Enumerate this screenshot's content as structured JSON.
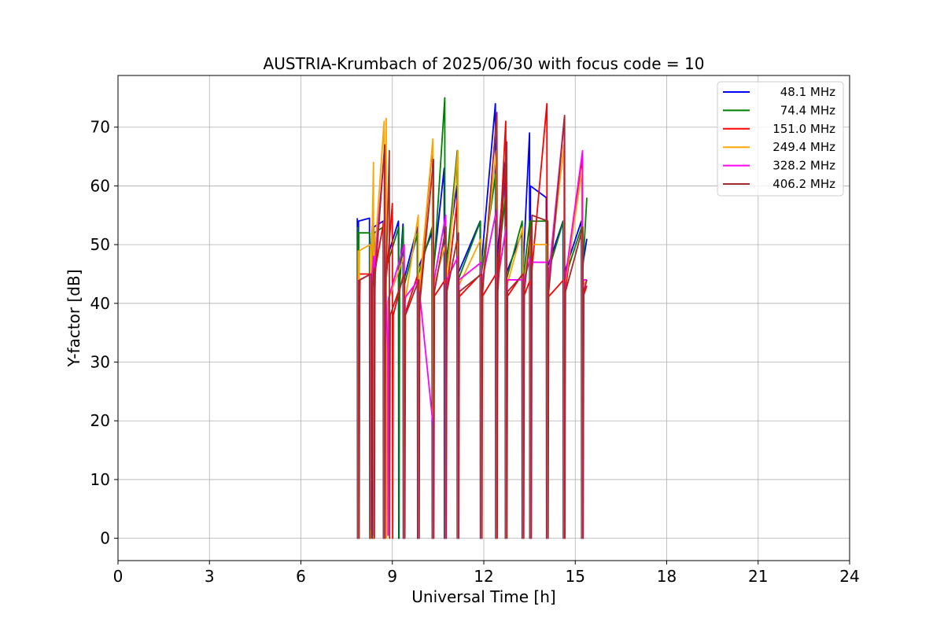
{
  "chart_data": {
    "type": "line",
    "title": "AUSTRIA-Krumbach of 2025/06/30 with focus code = 10",
    "xlabel": "Universal Time [h]",
    "ylabel": "Y-factor [dB]",
    "xlim": [
      0,
      24
    ],
    "ylim": [
      -3.8,
      78.8
    ],
    "xticks": [
      0,
      3,
      6,
      9,
      12,
      15,
      18,
      21,
      24
    ],
    "yticks": [
      0,
      10,
      20,
      30,
      40,
      50,
      60,
      70
    ],
    "grid": true,
    "legend_position": "top-right",
    "series": [
      {
        "name": "48.1 MHz",
        "color": "#0000ff",
        "x": [
          7.85,
          7.86,
          7.87,
          7.88,
          7.89,
          8.25,
          8.26,
          8.27,
          8.28,
          8.35,
          8.36,
          8.37,
          8.38,
          8.39,
          8.7,
          8.71,
          8.72,
          8.73,
          9.2,
          9.21,
          9.22,
          9.23,
          9.35,
          9.36,
          9.37,
          9.38,
          9.82,
          9.83,
          9.84,
          9.85,
          10.3,
          10.31,
          10.32,
          10.33,
          10.7,
          10.71,
          10.72,
          10.73,
          11.12,
          11.13,
          11.14,
          11.15,
          11.88,
          11.89,
          11.9,
          11.91,
          12.38,
          12.39,
          12.4,
          12.41,
          12.7,
          12.71,
          12.72,
          12.73,
          13.25,
          13.26,
          13.27,
          13.28,
          13.5,
          13.51,
          13.52,
          13.53,
          14.05,
          14.06,
          14.07,
          14.08,
          14.6,
          14.61,
          14.62,
          14.63,
          15.2,
          15.21,
          15.22,
          15.23,
          15.38
        ],
        "y": [
          54.5,
          0,
          25,
          44,
          54,
          54.5,
          0,
          27,
          45,
          54,
          0,
          26,
          45,
          53,
          54,
          0,
          30,
          46,
          54,
          0,
          26,
          44,
          53.5,
          0,
          25,
          44,
          53,
          0,
          30,
          46,
          52,
          0,
          27,
          45,
          63,
          0,
          30,
          46,
          60,
          0,
          28,
          45,
          54,
          0,
          30,
          46,
          74,
          0,
          30,
          46,
          64,
          0,
          27,
          45,
          52,
          0,
          26,
          45,
          69,
          0,
          30,
          60,
          58,
          0,
          28,
          46,
          54,
          0,
          28,
          45,
          54,
          0,
          28,
          46,
          51
        ]
      },
      {
        "name": "74.4 MHz",
        "color": "#008000",
        "x": [
          7.86,
          7.87,
          7.88,
          7.89,
          7.9,
          8.26,
          8.27,
          8.28,
          8.29,
          8.36,
          8.37,
          8.38,
          8.39,
          8.4,
          8.71,
          8.72,
          8.73,
          8.74,
          9.21,
          9.22,
          9.23,
          9.24,
          9.36,
          9.37,
          9.38,
          9.39,
          9.83,
          9.84,
          9.85,
          9.86,
          10.31,
          10.32,
          10.33,
          10.34,
          10.72,
          10.73,
          10.74,
          10.75,
          11.13,
          11.14,
          11.15,
          11.16,
          11.89,
          11.9,
          11.91,
          11.92,
          12.39,
          12.4,
          12.41,
          12.42,
          12.71,
          12.72,
          12.73,
          12.74,
          13.26,
          13.27,
          13.28,
          13.29,
          13.51,
          13.52,
          13.53,
          13.54,
          14.06,
          14.07,
          14.08,
          14.09,
          14.61,
          14.62,
          14.63,
          14.64,
          15.21,
          15.22,
          15.23,
          15.24,
          15.38
        ],
        "y": [
          53,
          0,
          24,
          43,
          52,
          52,
          0,
          26,
          44,
          53,
          0,
          25,
          44,
          52,
          53,
          0,
          29,
          45,
          53,
          0,
          25,
          43,
          53,
          0,
          24,
          43,
          52,
          0,
          29,
          45,
          53,
          0,
          26,
          44,
          75,
          0,
          29,
          45,
          66,
          0,
          27,
          44,
          54,
          0,
          29,
          45,
          62,
          0,
          29,
          45,
          58,
          0,
          26,
          44,
          54,
          0,
          25,
          44,
          54,
          0,
          29,
          54,
          54,
          0,
          27,
          45,
          54,
          0,
          27,
          44,
          53,
          0,
          27,
          45,
          58
        ]
      },
      {
        "name": "151.0 MHz",
        "color": "#ff0000",
        "x": [
          7.87,
          7.88,
          7.89,
          7.9,
          7.91,
          8.27,
          8.28,
          8.29,
          8.3,
          8.37,
          8.38,
          8.39,
          8.4,
          8.41,
          8.72,
          8.73,
          8.74,
          8.75,
          9.0,
          9.01,
          9.02,
          9.03,
          9.37,
          9.38,
          9.39,
          9.4,
          9.84,
          9.85,
          9.86,
          9.87,
          10.32,
          10.33,
          10.34,
          10.35,
          10.73,
          10.74,
          10.75,
          10.76,
          11.14,
          11.15,
          11.16,
          11.17,
          11.9,
          11.91,
          11.92,
          11.93,
          12.4,
          12.41,
          12.42,
          12.43,
          12.72,
          12.73,
          12.74,
          12.75,
          13.27,
          13.28,
          13.29,
          13.3,
          13.52,
          13.53,
          13.54,
          13.55,
          14.07,
          14.08,
          14.09,
          14.1,
          14.62,
          14.63,
          14.64,
          14.65,
          15.22,
          15.23,
          15.24,
          15.25,
          15.38
        ],
        "y": [
          45,
          0,
          20,
          40,
          45,
          45,
          0,
          21,
          41,
          45,
          0,
          20,
          41,
          45,
          54,
          0,
          24,
          41,
          57,
          0,
          20,
          38,
          45,
          0,
          20,
          38,
          45,
          0,
          24,
          40,
          67,
          0,
          21,
          41,
          44,
          0,
          24,
          41,
          58,
          0,
          22,
          41,
          45,
          0,
          24,
          41,
          45,
          0,
          24,
          41,
          71,
          0,
          21,
          41,
          45,
          0,
          20,
          41,
          44,
          0,
          24,
          44,
          74,
          0,
          22,
          41,
          44,
          0,
          22,
          41,
          65,
          0,
          22,
          41,
          43
        ]
      },
      {
        "name": "249.4 MHz",
        "color": "#ffa500",
        "x": [
          7.88,
          7.89,
          7.9,
          7.91,
          7.92,
          8.28,
          8.29,
          8.3,
          8.31,
          8.38,
          8.39,
          8.4,
          8.41,
          8.42,
          8.73,
          8.74,
          8.75,
          8.76,
          8.8,
          8.81,
          8.82,
          8.83,
          9.38,
          9.39,
          9.4,
          9.41,
          9.85,
          9.86,
          9.87,
          9.88,
          10.33,
          10.34,
          10.35,
          10.36,
          10.74,
          10.75,
          10.76,
          10.77,
          11.15,
          11.16,
          11.17,
          11.18,
          11.91,
          11.92,
          11.93,
          11.94,
          12.41,
          12.42,
          12.43,
          12.44,
          12.73,
          12.74,
          12.75,
          12.76,
          13.28,
          13.29,
          13.3,
          13.31,
          13.53,
          13.54,
          13.55,
          13.56,
          14.08,
          14.09,
          14.1,
          14.11,
          14.63,
          14.64,
          14.65,
          14.66,
          15.23,
          15.24,
          15.25,
          15.26,
          15.38
        ],
        "y": [
          49,
          0,
          21,
          42,
          49,
          50,
          0,
          23,
          43,
          64,
          0,
          22,
          43,
          48,
          71,
          0,
          26,
          43,
          71.5,
          0,
          22,
          40,
          48,
          0,
          22,
          40,
          55,
          0,
          26,
          42,
          68,
          0,
          23,
          43,
          50,
          0,
          26,
          43,
          66,
          0,
          24,
          43,
          51,
          0,
          26,
          43,
          66,
          0,
          26,
          43,
          53,
          0,
          23,
          43,
          53,
          0,
          22,
          43,
          52,
          0,
          26,
          50,
          50,
          0,
          24,
          43,
          67,
          0,
          24,
          43,
          63,
          0,
          24,
          43,
          44
        ]
      },
      {
        "name": "328.2 MHz",
        "color": "#ff00ff",
        "x": [
          7.89,
          7.9,
          7.91,
          7.92,
          7.93,
          8.29,
          8.3,
          8.31,
          8.32,
          8.39,
          8.4,
          8.41,
          8.42,
          8.43,
          8.74,
          8.75,
          8.76,
          8.77,
          8.85,
          8.86,
          8.87,
          8.88,
          9.39,
          9.4,
          9.41,
          9.42,
          9.86,
          9.87,
          9.88,
          9.89,
          10.34,
          10.35,
          10.36,
          10.37,
          10.75,
          10.76,
          10.77,
          10.78,
          11.16,
          11.17,
          11.18,
          11.19,
          11.92,
          11.93,
          11.94,
          11.95,
          12.42,
          12.43,
          12.44,
          12.45,
          12.74,
          12.75,
          12.76,
          12.77,
          13.29,
          13.3,
          13.31,
          13.32,
          13.54,
          13.55,
          13.56,
          13.57,
          14.09,
          14.1,
          14.11,
          14.12,
          14.64,
          14.65,
          14.66,
          14.67,
          15.24,
          15.25,
          15.26,
          15.27,
          15.38
        ],
        "y": [
          44,
          0,
          22,
          41,
          44,
          45,
          1.5,
          25,
          44,
          48,
          0.5,
          23,
          44,
          47,
          66,
          0,
          27,
          44,
          32,
          0.5,
          23,
          41,
          50,
          0,
          23,
          41,
          44,
          0,
          27,
          42,
          19,
          0,
          24,
          44,
          55,
          0,
          27,
          44,
          48,
          0,
          25,
          44,
          47,
          0,
          27,
          44,
          56,
          0,
          27,
          44,
          53,
          0,
          24,
          44,
          44,
          0,
          23,
          44,
          48,
          0,
          27,
          47,
          47,
          0,
          25,
          44,
          71.5,
          0,
          25,
          44,
          66,
          0,
          25,
          44,
          44
        ]
      },
      {
        "name": "406.2 MHz",
        "color": "#a52a2a",
        "x": [
          7.9,
          7.91,
          7.92,
          7.93,
          7.94,
          8.3,
          8.31,
          8.32,
          8.33,
          8.4,
          8.41,
          8.42,
          8.43,
          8.44,
          8.75,
          8.76,
          8.77,
          8.78,
          8.9,
          8.91,
          8.92,
          8.93,
          9.4,
          9.41,
          9.42,
          9.43,
          9.87,
          9.88,
          9.89,
          9.9,
          10.35,
          10.36,
          10.37,
          10.38,
          10.76,
          10.77,
          10.78,
          10.79,
          11.17,
          11.18,
          11.19,
          11.2,
          11.93,
          11.94,
          11.95,
          11.96,
          12.43,
          12.44,
          12.45,
          12.46,
          12.75,
          12.76,
          12.77,
          12.78,
          13.3,
          13.31,
          13.32,
          13.33,
          13.55,
          13.56,
          13.57,
          13.58,
          14.1,
          14.11,
          14.12,
          14.13,
          14.65,
          14.66,
          14.67,
          14.68,
          15.25,
          15.26,
          15.27,
          15.28,
          15.38
        ],
        "y": [
          44,
          0,
          20,
          40,
          44,
          45,
          0,
          21,
          42,
          46,
          0,
          20,
          42,
          45,
          67,
          0,
          25,
          42,
          66,
          0,
          20,
          38,
          45,
          0,
          20,
          38,
          44,
          0,
          25,
          40,
          64.5,
          0,
          21,
          42,
          53,
          0,
          25,
          42,
          52,
          0,
          23,
          42,
          45,
          0,
          25,
          42,
          72.5,
          0,
          25,
          42,
          67.5,
          0,
          21,
          42,
          45,
          0,
          20,
          42,
          53,
          0,
          25,
          55,
          54,
          0,
          23,
          42,
          72,
          0,
          23,
          42,
          53,
          0,
          23,
          42,
          44
        ]
      }
    ]
  }
}
